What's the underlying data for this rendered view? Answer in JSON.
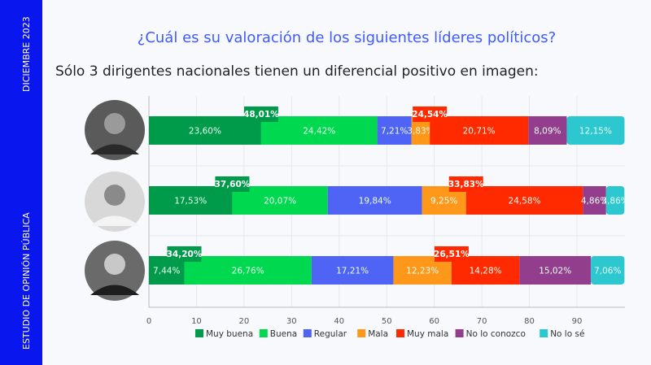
{
  "sidebar": {
    "top_text": "DICIEMBRE 2023",
    "bottom_text": "ESTUDIO DE OPINIÓN PÚBLICA",
    "color": "#0a16ee"
  },
  "header": {
    "title": "¿Cuál es su valoración de los siguientes líderes políticos?",
    "subtitle": "Sólo 3 dirigentes nacionales tienen un diferencial positivo en imagen:"
  },
  "chart_data": {
    "type": "bar",
    "orientation": "horizontal",
    "stacked": true,
    "title": "¿Cuál es su valoración de los siguientes líderes políticos?",
    "xlim": [
      0,
      100
    ],
    "xticks": [
      0,
      10,
      20,
      30,
      40,
      50,
      60,
      70,
      80,
      90
    ],
    "grid": true,
    "legend_position": "bottom",
    "categories_shown_as": "photo",
    "series": [
      {
        "name": "Muy buena",
        "color": "#009b4a",
        "values": [
          23.6,
          17.53,
          7.44
        ],
        "labels": [
          "23,60%",
          "17,53%",
          "7,44%"
        ]
      },
      {
        "name": "Buena",
        "color": "#00d84f",
        "values": [
          24.42,
          20.07,
          26.76
        ],
        "labels": [
          "24,42%",
          "20,07%",
          "26,76%"
        ]
      },
      {
        "name": "Regular",
        "color": "#4f63f5",
        "values": [
          7.21,
          19.84,
          17.21
        ],
        "labels": [
          "7,21%",
          "19,84%",
          "17,21%"
        ]
      },
      {
        "name": "Mala",
        "color": "#ff981a",
        "values": [
          3.83,
          9.25,
          12.23
        ],
        "labels": [
          "3,83%",
          "9,25%",
          "12,23%"
        ]
      },
      {
        "name": "Muy mala",
        "color": "#ff2a00",
        "values": [
          20.71,
          24.58,
          14.28
        ],
        "labels": [
          "20,71%",
          "24,58%",
          "14,28%"
        ]
      },
      {
        "name": "No lo conozco",
        "color": "#923e8c",
        "values": [
          8.09,
          4.86,
          15.02
        ],
        "labels": [
          "8,09%",
          "4,86%",
          "15,02%"
        ]
      },
      {
        "name": "No lo sé",
        "color": "#2cc7cf",
        "values": [
          12.15,
          3.86,
          7.06
        ],
        "labels": [
          "12,15%",
          "3,86%",
          "7,06%"
        ]
      }
    ],
    "annotations": {
      "positive": {
        "values": [
          48.01,
          37.6,
          34.2
        ],
        "labels": [
          "48,01%",
          "37,60%",
          "34,20%"
        ],
        "color": "#009b4a"
      },
      "negative": {
        "values": [
          24.54,
          33.83,
          26.51
        ],
        "labels": [
          "24,54%",
          "33,83%",
          "26,51%"
        ],
        "color": "#ff2a00"
      }
    }
  }
}
